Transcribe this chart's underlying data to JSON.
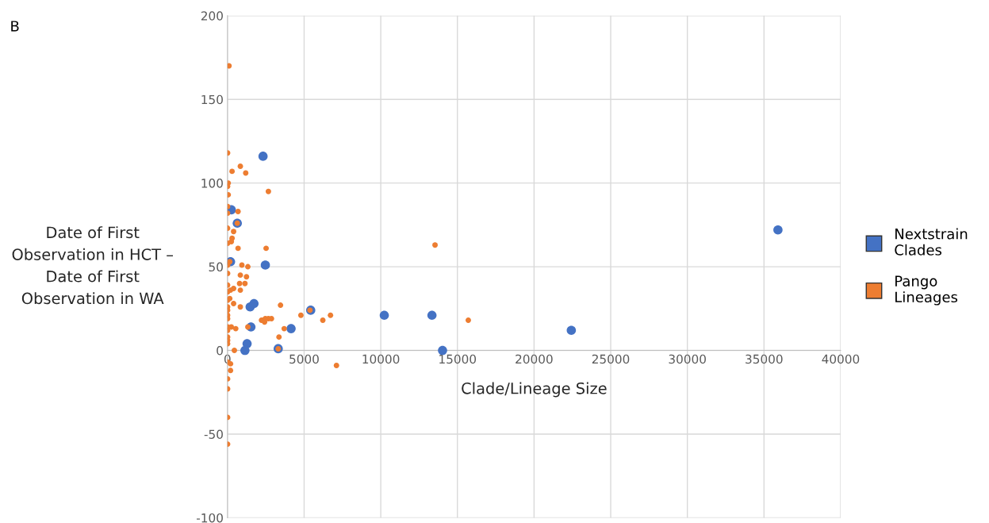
{
  "chart_data": {
    "type": "scatter",
    "xlabel": "Clade/Lineage Size",
    "ylabel": "Date of First\nObservation in HCT –\nDate of First\nObservation in WA",
    "annotations": [
      "B"
    ],
    "xlim": [
      0,
      40000
    ],
    "xticks": [
      0,
      5000,
      10000,
      15000,
      20000,
      25000,
      30000,
      35000,
      40000
    ],
    "ylim": [
      -100,
      200
    ],
    "yticks": [
      -100,
      -50,
      0,
      50,
      100,
      150,
      200
    ],
    "grid": true,
    "legend": "right",
    "marker": "circle",
    "series": [
      {
        "name": "Nextstrain Clades",
        "color": "#4472c4",
        "x": [
          250,
          640,
          200,
          2320,
          2470,
          1480,
          1730,
          1530,
          1280,
          1140,
          3310,
          4150,
          5430,
          10230,
          13340,
          14030,
          22430,
          35910
        ],
        "values": [
          84,
          76,
          53,
          116,
          51,
          26,
          28,
          14,
          4,
          0,
          1,
          13,
          24,
          21,
          21,
          0,
          12,
          72
        ]
      },
      {
        "name": "Pango Lineages",
        "color": "#ed7d31",
        "x": [
          100,
          10,
          840,
          300,
          1190,
          50,
          10,
          2670,
          50,
          10,
          10,
          690,
          640,
          10,
          400,
          300,
          250,
          10,
          2520,
          690,
          150,
          10,
          940,
          1330,
          10,
          840,
          1240,
          10,
          790,
          1140,
          400,
          200,
          840,
          10,
          10,
          150,
          400,
          840,
          10,
          10,
          10,
          3460,
          5380,
          4790,
          6720,
          6220,
          2220,
          2320,
          2470,
          2670,
          2870,
          2420,
          10,
          10,
          250,
          540,
          1330,
          3700,
          3360,
          10,
          10,
          10,
          10,
          450,
          3310,
          7110,
          10,
          200,
          200,
          10,
          10,
          10,
          10,
          13540,
          15710
        ],
        "values": [
          170,
          118,
          110,
          107,
          106,
          100,
          98,
          95,
          93,
          86,
          82,
          83,
          76,
          73,
          71,
          67,
          65,
          64,
          61,
          61,
          53,
          51,
          51,
          50,
          46,
          45,
          44,
          39,
          40,
          40,
          37,
          36,
          36,
          35,
          30,
          31,
          28,
          26,
          26,
          24,
          21,
          27,
          24,
          21,
          21,
          18,
          18,
          18,
          19,
          19,
          19,
          17,
          19,
          14,
          14,
          13,
          14,
          13,
          8,
          12,
          8,
          6,
          4,
          0,
          1,
          -9,
          -7,
          -8,
          -12,
          -17,
          -23,
          -40,
          -56,
          63,
          18
        ]
      }
    ]
  }
}
